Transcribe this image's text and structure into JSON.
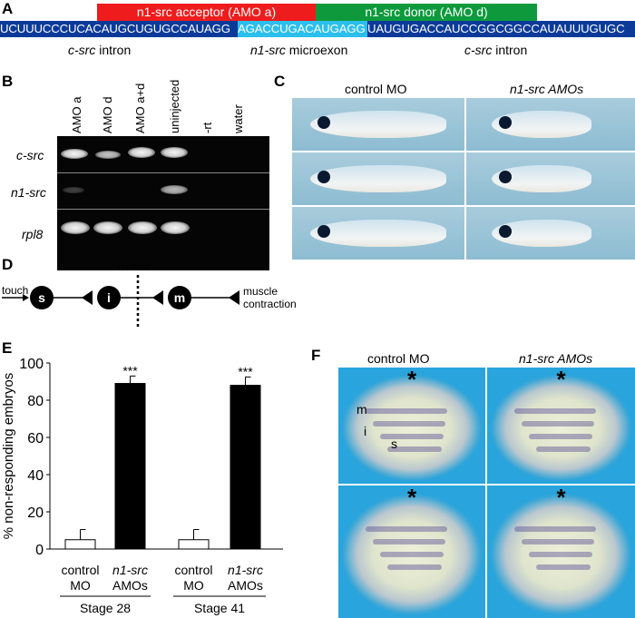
{
  "panel_a": {
    "label": "A",
    "acceptor": "n1-src acceptor (AMO a)",
    "donor": "n1-src donor (AMO d)",
    "seq_intron1": "UCUUUCCCUCACAUGCUGUGCCAUAGG",
    "seq_exon": "AGACCUGACAUGAGG",
    "seq_intron2": "UAUGUGACCAUCCGGCGGCCAUAUUUGUGC",
    "cap1_it": "c-src",
    "cap1": " intron",
    "cap2_it": "n1-src",
    "cap2": " microexon",
    "cap3_it": "c-src",
    "cap3": " intron",
    "colors": {
      "acceptor": "#ee1c1c",
      "donor": "#0e9a3c",
      "intron": "#0b3a99",
      "exon": "#2bbfec"
    }
  },
  "panel_b": {
    "label": "B",
    "lanes": [
      "AMO a",
      "AMO d",
      "AMO a+d",
      "uninjected",
      "-rt",
      "water"
    ],
    "rows": [
      "c-src",
      "n1-src",
      "rpl8"
    ]
  },
  "panel_c": {
    "label": "C",
    "col1": "control MO",
    "col2": "n1-src AMOs"
  },
  "panel_d": {
    "label": "D",
    "touch": "touch",
    "s": "s",
    "i": "i",
    "m": "m",
    "midline": "midline",
    "muscle": "muscle",
    "contraction": "contraction"
  },
  "panel_e": {
    "label": "E",
    "chart_data": {
      "type": "bar",
      "ylabel": "% non-responding embryos",
      "ylim": [
        0,
        100
      ],
      "yticks": [
        "0",
        "20",
        "40",
        "60",
        "80",
        "100"
      ],
      "categories": [
        {
          "l1": "control",
          "l2": "MO",
          "italic": false
        },
        {
          "l1": "n1-src",
          "l2": "AMOs",
          "italic": true
        },
        {
          "l1": "control",
          "l2": "MO",
          "italic": false
        },
        {
          "l1": "n1-src",
          "l2": "AMOs",
          "italic": true
        }
      ],
      "values": [
        5,
        89,
        5,
        88
      ],
      "errors": [
        5.5,
        4,
        5.5,
        4.5
      ],
      "fills": [
        "#ffffff",
        "#000000",
        "#ffffff",
        "#000000"
      ],
      "significance": [
        "",
        "***",
        "",
        "***"
      ],
      "groups": [
        "Stage 28",
        "Stage 41"
      ]
    }
  },
  "panel_f": {
    "label": "F",
    "col1": "control MO",
    "col2": "n1-src AMOs",
    "star": "*",
    "m": "m",
    "i": "i",
    "s": "s"
  }
}
